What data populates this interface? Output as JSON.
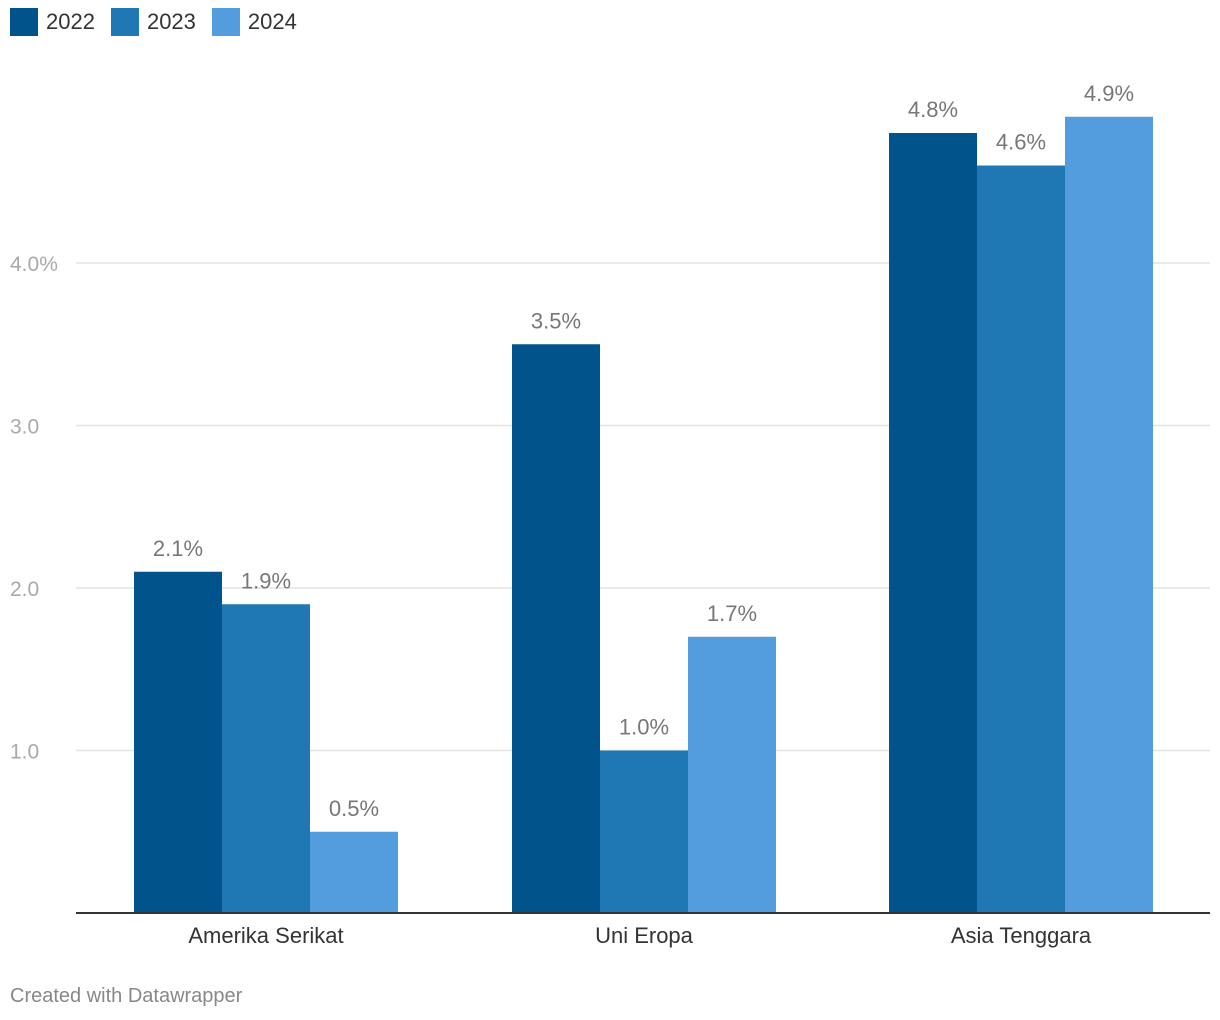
{
  "chart_data": {
    "type": "bar",
    "categories": [
      "Amerika Serikat",
      "Uni Eropa",
      "Asia Tenggara"
    ],
    "series": [
      {
        "name": "2022",
        "color": "#01538c",
        "values": [
          2.1,
          3.5,
          4.8
        ],
        "labels": [
          "2.1%",
          "3.5%",
          "4.8%"
        ]
      },
      {
        "name": "2023",
        "color": "#1f78b4",
        "values": [
          1.9,
          1.0,
          4.6
        ],
        "labels": [
          "1.9%",
          "1.0%",
          "4.6%"
        ]
      },
      {
        "name": "2024",
        "color": "#539dde",
        "values": [
          0.5,
          1.7,
          4.9
        ],
        "labels": [
          "0.5%",
          "1.7%",
          "4.9%"
        ]
      }
    ],
    "yticks": [
      1.0,
      2.0,
      3.0,
      4.0
    ],
    "ytick_labels": [
      "1.0",
      "2.0",
      "3.0",
      "4.0%"
    ],
    "ylim": [
      0,
      5
    ],
    "grid": true,
    "legend_position": "top-left"
  },
  "footer": {
    "credit": "Created with Datawrapper"
  }
}
